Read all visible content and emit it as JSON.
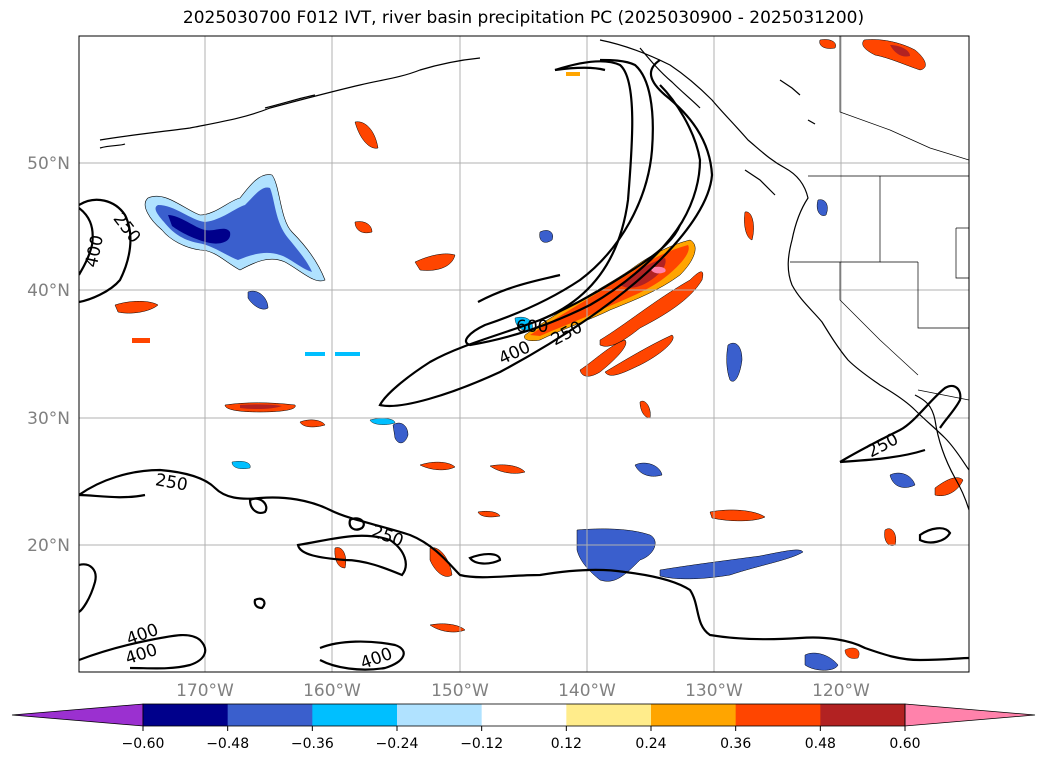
{
  "title": "2025030700 F012 IVT, river basin precipitation PC (2025030900 - 2025031200)",
  "map": {
    "lat_labels": [
      "50°N",
      "40°N",
      "30°N",
      "20°N"
    ],
    "lon_labels": [
      "170°W",
      "160°W",
      "150°W",
      "140°W",
      "130°W",
      "120°W"
    ],
    "ivt_contour_labels": [
      "250",
      "400",
      "600",
      "400",
      "250",
      "250",
      "250",
      "400",
      "400",
      "400",
      "250"
    ]
  },
  "colorbar": {
    "ticks": [
      "−0.60",
      "−0.48",
      "−0.36",
      "−0.24",
      "−0.12",
      "0.12",
      "0.24",
      "0.36",
      "0.48",
      "0.60"
    ],
    "colors": [
      "#9b30d0",
      "#00008b",
      "#3a5fcd",
      "#00bfff",
      "#b0e2ff",
      "#ffffff",
      "#ffec8b",
      "#ffa500",
      "#ff4500",
      "#b22222",
      "#ff82ab"
    ]
  }
}
